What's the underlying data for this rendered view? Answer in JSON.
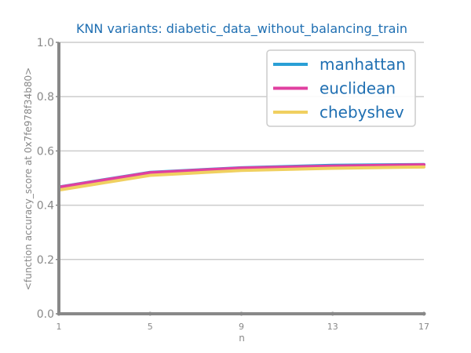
{
  "chart_data": {
    "type": "line",
    "title": "KNN variants: diabetic_data_without_balancing_train",
    "xlabel": "n",
    "ylabel": "<function accuracy_score at 0x7fe978f34b80>",
    "x": [
      1,
      5,
      9,
      13,
      17
    ],
    "x_ticks": [
      "1",
      "5",
      "9",
      "13",
      "17"
    ],
    "y_ticks": [
      "0.0",
      "0.2",
      "0.4",
      "0.6",
      "0.8",
      "1.0"
    ],
    "xlim": [
      1,
      17
    ],
    "ylim": [
      0,
      1
    ],
    "grid": "horizontal",
    "legend_position": "top-right",
    "series": [
      {
        "name": "manhattan",
        "color": "#2a9fd6",
        "values": [
          0.467,
          0.521,
          0.538,
          0.547,
          0.55
        ]
      },
      {
        "name": "euclidean",
        "color": "#e040a0",
        "values": [
          0.466,
          0.52,
          0.537,
          0.544,
          0.549
        ]
      },
      {
        "name": "chebyshev",
        "color": "#f0d060",
        "values": [
          0.456,
          0.51,
          0.528,
          0.536,
          0.541
        ]
      }
    ],
    "colors": {
      "title": "#1f6fb2",
      "legend_text": "#1f6fb2",
      "axis": "#888888",
      "grid": "#cccccc"
    }
  }
}
